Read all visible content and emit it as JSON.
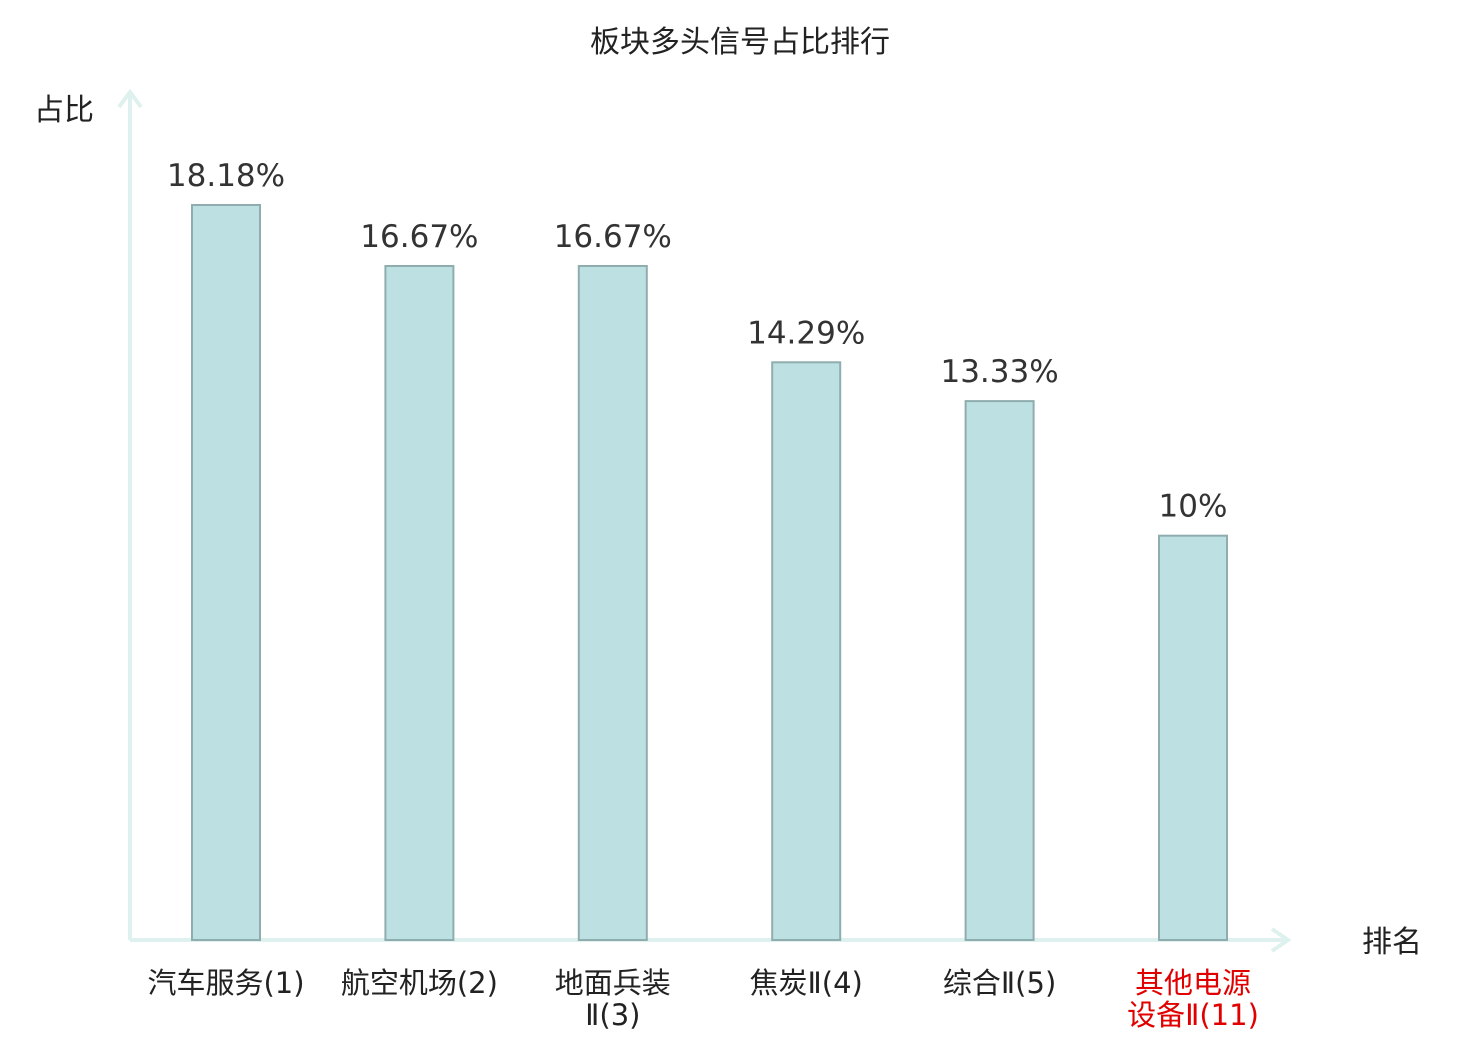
{
  "chart_data": {
    "type": "bar",
    "title": "板块多头信号占比排行",
    "xlabel": "排名",
    "ylabel": "占比",
    "ylim": [
      0,
      20
    ],
    "grid": false,
    "legend": "none",
    "categories": [
      {
        "lines": [
          "汽车服务(1)"
        ],
        "highlight": false
      },
      {
        "lines": [
          "航空机场(2)"
        ],
        "highlight": false
      },
      {
        "lines": [
          "地面兵装",
          "Ⅱ(3)"
        ],
        "highlight": false
      },
      {
        "lines": [
          "焦炭Ⅱ(4)"
        ],
        "highlight": false
      },
      {
        "lines": [
          "综合Ⅱ(5)"
        ],
        "highlight": false
      },
      {
        "lines": [
          "其他电源",
          "设备Ⅱ(11)"
        ],
        "highlight": true
      }
    ],
    "values": [
      18.18,
      16.67,
      16.67,
      14.29,
      13.33,
      10
    ],
    "value_labels": [
      "18.18%",
      "16.67%",
      "16.67%",
      "14.29%",
      "13.33%",
      "10%"
    ],
    "colors": {
      "bar_fill": "#bde0e2",
      "bar_stroke": "#8fadae",
      "axis": "#dff1ef",
      "highlight_text": "#e00000",
      "text": "#222222"
    }
  }
}
